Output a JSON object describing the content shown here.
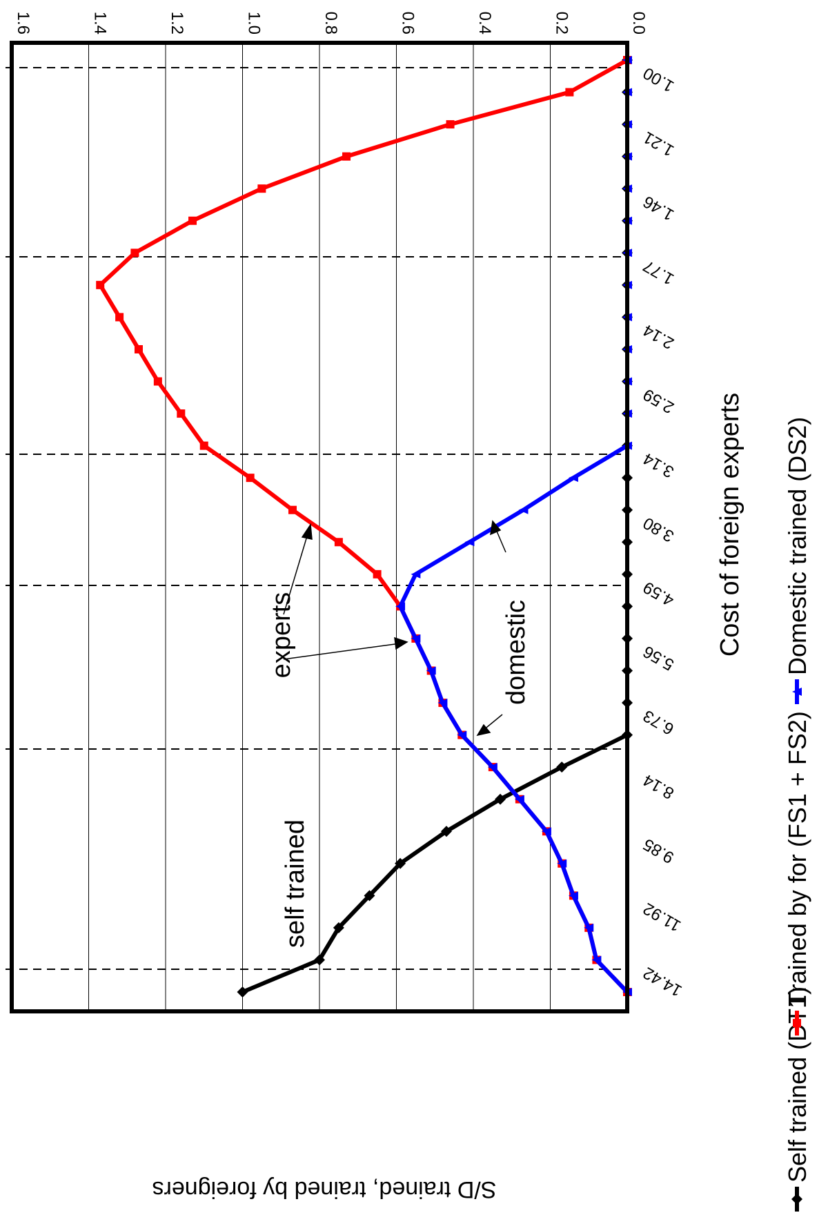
{
  "chart_data": {
    "type": "line",
    "x_label": "Cost of foreign experts",
    "y_label": "S/D trained, trained by foreigners",
    "categories": [
      "1.00",
      null,
      "1.21",
      null,
      "1.46",
      null,
      "1.77",
      null,
      "2.14",
      null,
      "2.59",
      null,
      "3.14",
      null,
      "3.80",
      null,
      "4.59",
      null,
      "5.56",
      null,
      "6.73",
      null,
      "8.14",
      null,
      "9.85",
      null,
      "11.92",
      null,
      "14.42",
      null
    ],
    "series": [
      {
        "name": "Self trained (DT1)",
        "color": "#000000",
        "marker": "diamond",
        "values": [
          0,
          0,
          0,
          0,
          0,
          0,
          0,
          0,
          0,
          0,
          0,
          0,
          0,
          0,
          0,
          0,
          0,
          0,
          0,
          0,
          0,
          0,
          0.17,
          0.33,
          0.47,
          0.59,
          0.67,
          0.75,
          0.8,
          1.0
        ]
      },
      {
        "name": "Trained by for (FS1 + FS2)",
        "color": "#ff0000",
        "marker": "square",
        "values": [
          0,
          0.15,
          0.46,
          0.73,
          0.95,
          1.13,
          1.28,
          1.37,
          1.32,
          1.27,
          1.22,
          1.16,
          1.1,
          0.98,
          0.87,
          0.75,
          0.65,
          0.59,
          0.55,
          0.51,
          0.48,
          0.43,
          0.35,
          0.28,
          0.21,
          0.17,
          0.14,
          0.1,
          0.08,
          0
        ]
      },
      {
        "name": "Domestic trained (DS2)",
        "color": "#0000ff",
        "marker": "triangle",
        "values": [
          0,
          0,
          0,
          0,
          0,
          0,
          0,
          0,
          0,
          0,
          0,
          0,
          0,
          0.14,
          0.27,
          0.41,
          0.55,
          0.59,
          0.55,
          0.51,
          0.48,
          0.43,
          0.35,
          0.28,
          0.21,
          0.17,
          0.14,
          0.1,
          0.08,
          0
        ]
      }
    ],
    "annotations": [
      "experts",
      "domestic",
      "self trained"
    ],
    "ylim": [
      0,
      1.6
    ],
    "yticks": [
      {
        "value": 0,
        "label": "0.0"
      },
      {
        "value": 0.2,
        "label": "0.2"
      },
      {
        "value": 0.4,
        "label": "0.4"
      },
      {
        "value": 0.6,
        "label": "0.6"
      },
      {
        "value": 0.8,
        "label": "0.8"
      },
      {
        "value": 1,
        "label": "1.0"
      },
      {
        "value": 1.2,
        "label": "1.2"
      },
      {
        "value": 1.4,
        "label": "1.4"
      },
      {
        "value": 1.6,
        "label": "1.6"
      }
    ],
    "grid": true
  }
}
